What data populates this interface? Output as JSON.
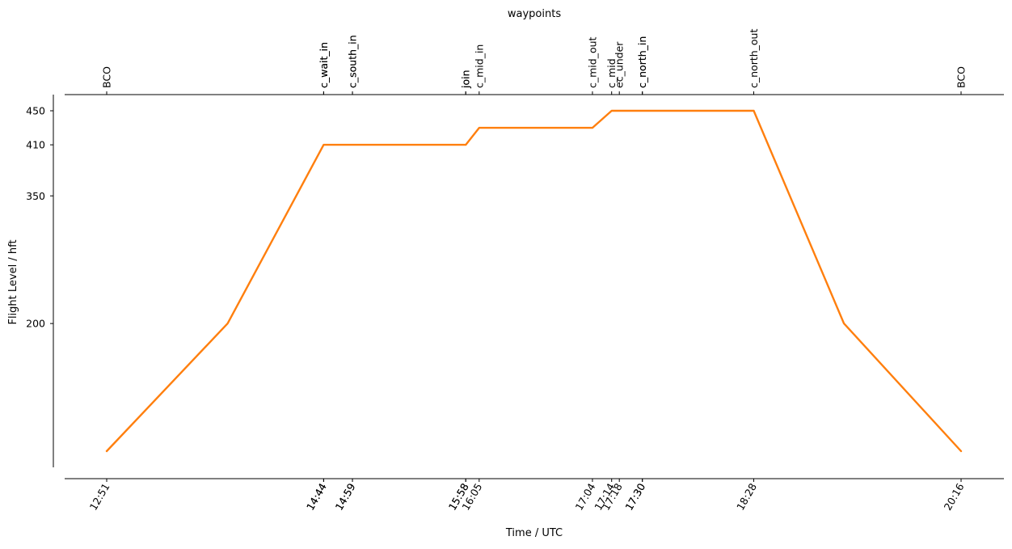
{
  "chart_data": {
    "type": "line",
    "top_axis_title": "waypoints",
    "xlabel": "Time / UTC",
    "ylabel": "Flight Level / hft",
    "ylim": [
      50,
      467
    ],
    "y_ticks": [
      200,
      350,
      410,
      450
    ],
    "x_tick_labels": [
      "12:51",
      "14:44",
      "14:44",
      "14:59",
      "14:59",
      "15:58",
      "15:58",
      "16:05",
      "17:04",
      "17:14",
      "17:18",
      "17:30",
      "17:30",
      "18:28",
      "20:16"
    ],
    "waypoints": [
      {
        "name": "BCO",
        "time": "12:51"
      },
      {
        "name": "c_wait_in",
        "time": "14:44"
      },
      {
        "name": "c_wait_in",
        "time": "14:44"
      },
      {
        "name": "c_south_in",
        "time": "14:59"
      },
      {
        "name": "c_south_in",
        "time": "14:59"
      },
      {
        "name": "join",
        "time": "15:58"
      },
      {
        "name": "join",
        "time": "15:58"
      },
      {
        "name": "c_mid_in",
        "time": "16:05"
      },
      {
        "name": "c_mid_out",
        "time": "17:04"
      },
      {
        "name": "c_mid",
        "time": "17:14"
      },
      {
        "name": "ec_under",
        "time": "17:18"
      },
      {
        "name": "c_north_in",
        "time": "17:30"
      },
      {
        "name": "c_north_in",
        "time": "17:30"
      },
      {
        "name": "c_north_out",
        "time": "18:28"
      },
      {
        "name": "BCO",
        "time": "20:16"
      }
    ],
    "series": [
      {
        "color": "#ff7f0e",
        "x": [
          "12:51",
          "13:54",
          "14:44",
          "15:58",
          "16:05",
          "17:04",
          "17:14",
          "17:18",
          "18:28",
          "19:15",
          "20:16"
        ],
        "y": [
          50,
          200,
          410,
          410,
          430,
          430,
          450,
          450,
          450,
          200,
          50
        ]
      }
    ]
  }
}
